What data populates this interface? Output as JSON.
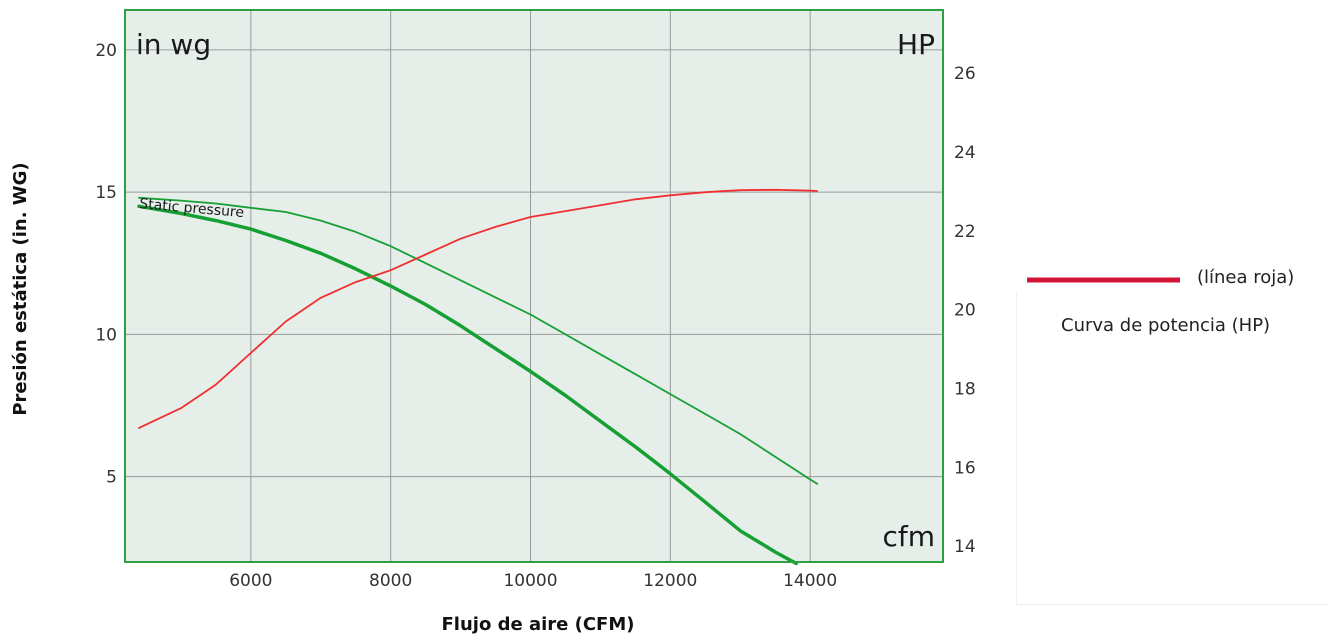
{
  "chart_data": {
    "type": "line",
    "xlabel": "Flujo de aire (CFM)",
    "ylabel": "Presión estática (in. WG)",
    "corner_labels": {
      "left_unit": "in wg",
      "right_unit": "HP",
      "x_unit": "cfm"
    },
    "annotation": "Static pressure",
    "legend": {
      "swatch_label": "(línea roja)",
      "description": "Curva de potencia (HP)",
      "placement": "right"
    },
    "xlim": [
      4200,
      15900
    ],
    "ylim": [
      2,
      21.4
    ],
    "y2lim": [
      13.6,
      27.6
    ],
    "x_ticks": [
      6000,
      8000,
      10000,
      12000,
      14000
    ],
    "y_ticks": [
      5,
      10,
      15,
      20
    ],
    "y2_ticks": [
      14,
      16,
      18,
      20,
      22,
      24,
      26
    ],
    "grid": true,
    "colors": {
      "plot_bg": "#e6eee9",
      "frame": "#2ea043",
      "grid": "#9a9a9a",
      "green_line": "#16a034",
      "power_line": "#f03030",
      "legend_line": "#d01538"
    },
    "series": [
      {
        "axis": "left",
        "color": "#16a034",
        "width": 1.8,
        "x": [
          4400,
          5000,
          5500,
          6000,
          6500,
          7000,
          7500,
          8000,
          8500,
          9000,
          9500,
          10000,
          10500,
          11000,
          11500,
          12000,
          12500,
          13000,
          13500,
          14000,
          14100
        ],
        "y": [
          14.8,
          14.7,
          14.6,
          14.45,
          14.3,
          14.0,
          13.6,
          13.1,
          12.5,
          11.9,
          11.3,
          10.7,
          10.0,
          9.3,
          8.6,
          7.9,
          7.2,
          6.5,
          5.7,
          4.9,
          4.75
        ]
      },
      {
        "axis": "left",
        "color": "#16a034",
        "width": 3.5,
        "x": [
          4400,
          5000,
          5500,
          6000,
          6500,
          7000,
          7500,
          8000,
          8500,
          9000,
          9500,
          10000,
          10500,
          11000,
          11500,
          12000,
          12500,
          13000,
          13500,
          13800
        ],
        "y": [
          14.5,
          14.25,
          14.0,
          13.7,
          13.3,
          12.85,
          12.3,
          11.7,
          11.05,
          10.3,
          9.5,
          8.7,
          7.85,
          6.95,
          6.05,
          5.1,
          4.1,
          3.1,
          2.35,
          1.95
        ]
      },
      {
        "axis": "right",
        "color": "#f03030",
        "width": 1.8,
        "x": [
          4400,
          5000,
          5500,
          6000,
          6500,
          7000,
          7500,
          8000,
          8500,
          9000,
          9500,
          10000,
          10500,
          11000,
          11500,
          12000,
          12500,
          13000,
          13500,
          14000,
          14100
        ],
        "y": [
          17.0,
          17.5,
          18.1,
          18.9,
          19.7,
          20.3,
          20.7,
          21.0,
          21.4,
          21.8,
          22.1,
          22.35,
          22.5,
          22.65,
          22.8,
          22.9,
          22.98,
          23.03,
          23.04,
          23.02,
          23.01
        ]
      }
    ]
  }
}
